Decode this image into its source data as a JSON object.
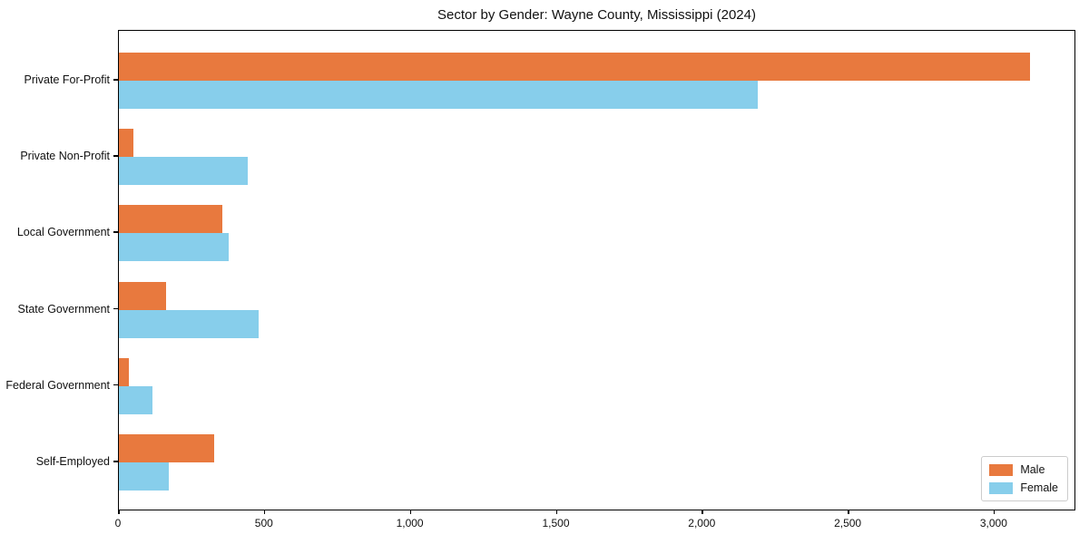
{
  "title": "Sector by Gender: Wayne County, Mississippi (2024)",
  "colors": {
    "male": "#E8793E",
    "female": "#87CEEB",
    "axis": "#000000",
    "legend_border": "#CCCCCC",
    "background": "#FFFFFF"
  },
  "x_axis": {
    "tick_labels": [
      "0",
      "500",
      "1,000",
      "1,500",
      "2,000",
      "2,500",
      "3,000"
    ],
    "tick_values": [
      0,
      500,
      1000,
      1500,
      2000,
      2500,
      3000
    ]
  },
  "legend": {
    "position": "lower right",
    "entries": [
      {
        "label": "Male",
        "color": "#E8793E"
      },
      {
        "label": "Female",
        "color": "#87CEEB"
      }
    ]
  },
  "chart_data": {
    "type": "bar",
    "orientation": "horizontal",
    "title": "Sector by Gender: Wayne County, Mississippi (2024)",
    "categories": [
      "Private For-Profit",
      "Private Non-Profit",
      "Local Government",
      "State Government",
      "Federal Government",
      "Self-Employed"
    ],
    "series": [
      {
        "name": "Male",
        "color": "#E8793E",
        "values": [
          3120,
          50,
          355,
          160,
          35,
          325
        ]
      },
      {
        "name": "Female",
        "color": "#87CEEB",
        "values": [
          2190,
          440,
          375,
          480,
          115,
          170
        ]
      }
    ],
    "xlabel": "",
    "ylabel": "",
    "xlim": [
      0,
      3280
    ],
    "grid": false,
    "legend_position": "lower right"
  }
}
